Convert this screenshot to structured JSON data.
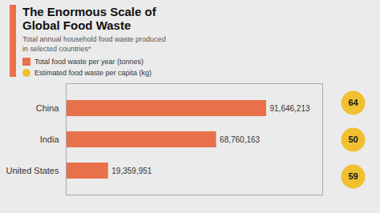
{
  "chart_data": {
    "type": "bar",
    "title": "The Enormous Scale of\nGlobal Food Waste",
    "subtitle": "Total annual household food waste produced\nin selected countries*",
    "orientation": "horizontal",
    "categories": [
      "China",
      "India",
      "United States"
    ],
    "series": [
      {
        "name": "Total food waste per year (tonnes)",
        "type": "bar",
        "color": "#E8714A",
        "values": [
          91646213,
          68760163,
          19359951
        ],
        "value_labels": [
          "91,646,213",
          "68,760,163",
          "19,359,951"
        ]
      },
      {
        "name": "Estimated food waste per capita (kg)",
        "type": "scatter",
        "marker": "circle",
        "color": "#F0C030",
        "values": [
          64,
          50,
          59
        ]
      }
    ],
    "xlim": [
      0,
      117307152.64
    ],
    "data_labels": true,
    "tick_labels": "y",
    "grid": false,
    "legend": "upper left"
  }
}
